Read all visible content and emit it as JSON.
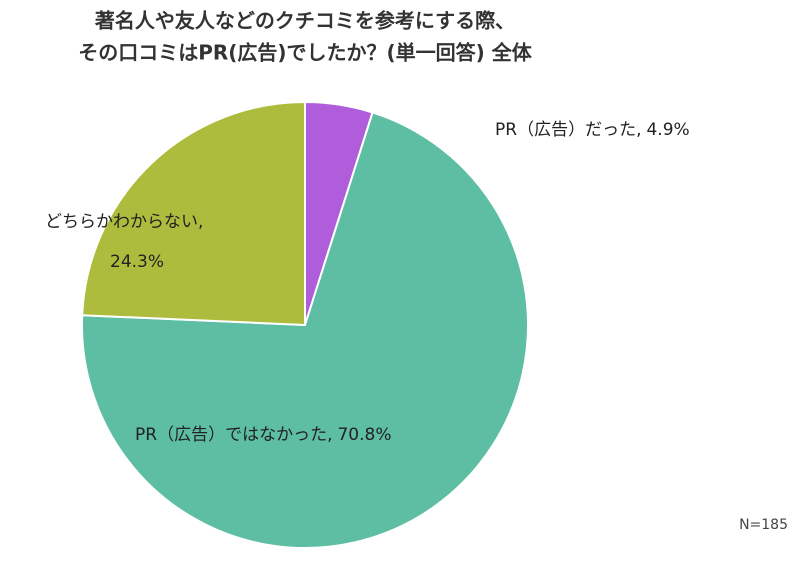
{
  "chart_data": {
    "type": "pie",
    "title": [
      "著名人や友人などのクチコミを参考にする際、",
      "その口コミはPR(広告)でしたか？(単一回答) 全体"
    ],
    "categories": [
      "PR（広告）だった,",
      "PR（広告）ではなかった,",
      "どちらかわからない,"
    ],
    "values": [
      4.9,
      70.8,
      24.3
    ],
    "value_labels": [
      "4.9%",
      "70.8%",
      "24.3%"
    ],
    "colors": [
      "#b05ddb",
      "#5dbea3",
      "#aebc3e"
    ],
    "note": "N=185"
  }
}
